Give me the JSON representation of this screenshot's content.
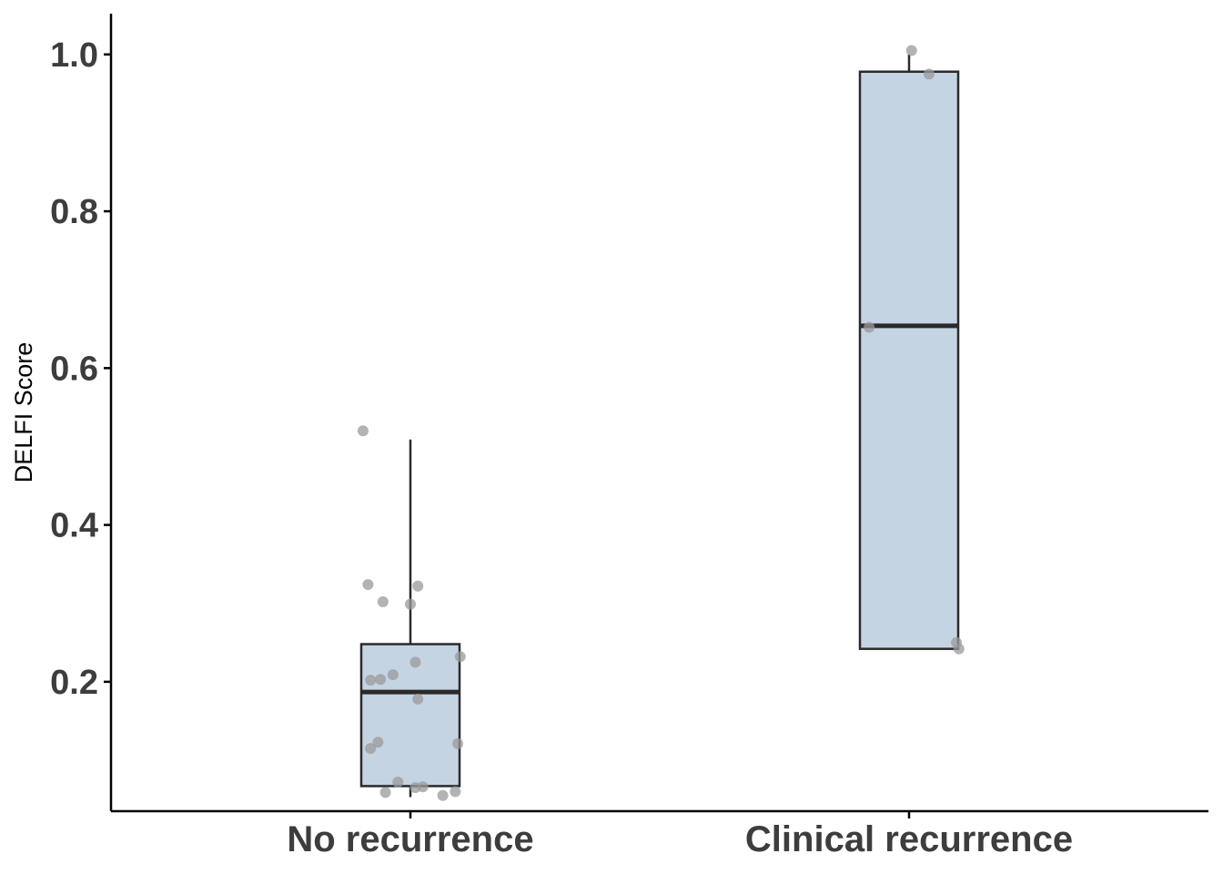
{
  "chart_data": {
    "type": "box",
    "title": "",
    "xlabel": "",
    "ylabel": "DELFI Score",
    "ylim": [
      0.035,
      1.052
    ],
    "yticks": [
      0.2,
      0.4,
      0.6,
      0.8,
      1.0
    ],
    "ytick_labels": [
      "0.2",
      "0.4",
      "0.6",
      "0.8",
      "1.0"
    ],
    "categories": [
      "No recurrence",
      "Clinical recurrence"
    ],
    "boxes": [
      {
        "category": "No recurrence",
        "whisker_low": 0.053,
        "q1": 0.067,
        "median": 0.187,
        "q3": 0.248,
        "whisker_high": 0.509
      },
      {
        "category": "Clinical recurrence",
        "whisker_low": 0.242,
        "q1": 0.242,
        "median": 0.654,
        "q3": 0.978,
        "whisker_high": 1.0
      }
    ],
    "points": [
      {
        "category": "No recurrence",
        "jitter": -0.19,
        "y": 0.52
      },
      {
        "category": "No recurrence",
        "jitter": -0.17,
        "y": 0.324
      },
      {
        "category": "No recurrence",
        "jitter": 0.03,
        "y": 0.322
      },
      {
        "category": "No recurrence",
        "jitter": -0.11,
        "y": 0.302
      },
      {
        "category": "No recurrence",
        "jitter": 0.0,
        "y": 0.299
      },
      {
        "category": "No recurrence",
        "jitter": 0.2,
        "y": 0.232
      },
      {
        "category": "No recurrence",
        "jitter": 0.02,
        "y": 0.225
      },
      {
        "category": "No recurrence",
        "jitter": -0.07,
        "y": 0.209
      },
      {
        "category": "No recurrence",
        "jitter": -0.12,
        "y": 0.203
      },
      {
        "category": "No recurrence",
        "jitter": -0.16,
        "y": 0.202
      },
      {
        "category": "No recurrence",
        "jitter": 0.03,
        "y": 0.178
      },
      {
        "category": "No recurrence",
        "jitter": -0.13,
        "y": 0.123
      },
      {
        "category": "No recurrence",
        "jitter": 0.19,
        "y": 0.121
      },
      {
        "category": "No recurrence",
        "jitter": -0.16,
        "y": 0.115
      },
      {
        "category": "No recurrence",
        "jitter": -0.05,
        "y": 0.072
      },
      {
        "category": "No recurrence",
        "jitter": 0.02,
        "y": 0.065
      },
      {
        "category": "No recurrence",
        "jitter": 0.05,
        "y": 0.066
      },
      {
        "category": "No recurrence",
        "jitter": -0.1,
        "y": 0.059
      },
      {
        "category": "No recurrence",
        "jitter": 0.18,
        "y": 0.06
      },
      {
        "category": "No recurrence",
        "jitter": 0.13,
        "y": 0.055
      },
      {
        "category": "Clinical recurrence",
        "jitter": 0.01,
        "y": 1.005
      },
      {
        "category": "Clinical recurrence",
        "jitter": 0.08,
        "y": 0.975
      },
      {
        "category": "Clinical recurrence",
        "jitter": -0.16,
        "y": 0.652
      },
      {
        "category": "Clinical recurrence",
        "jitter": 0.19,
        "y": 0.25
      },
      {
        "category": "Clinical recurrence",
        "jitter": 0.2,
        "y": 0.242
      }
    ],
    "box_fill": "#c5d4e3",
    "box_stroke": "#2a2a2a",
    "point_color": "#999999",
    "axis_color": "#000000",
    "label_color": "#3d3d3d",
    "grid": false,
    "legend": "none"
  }
}
